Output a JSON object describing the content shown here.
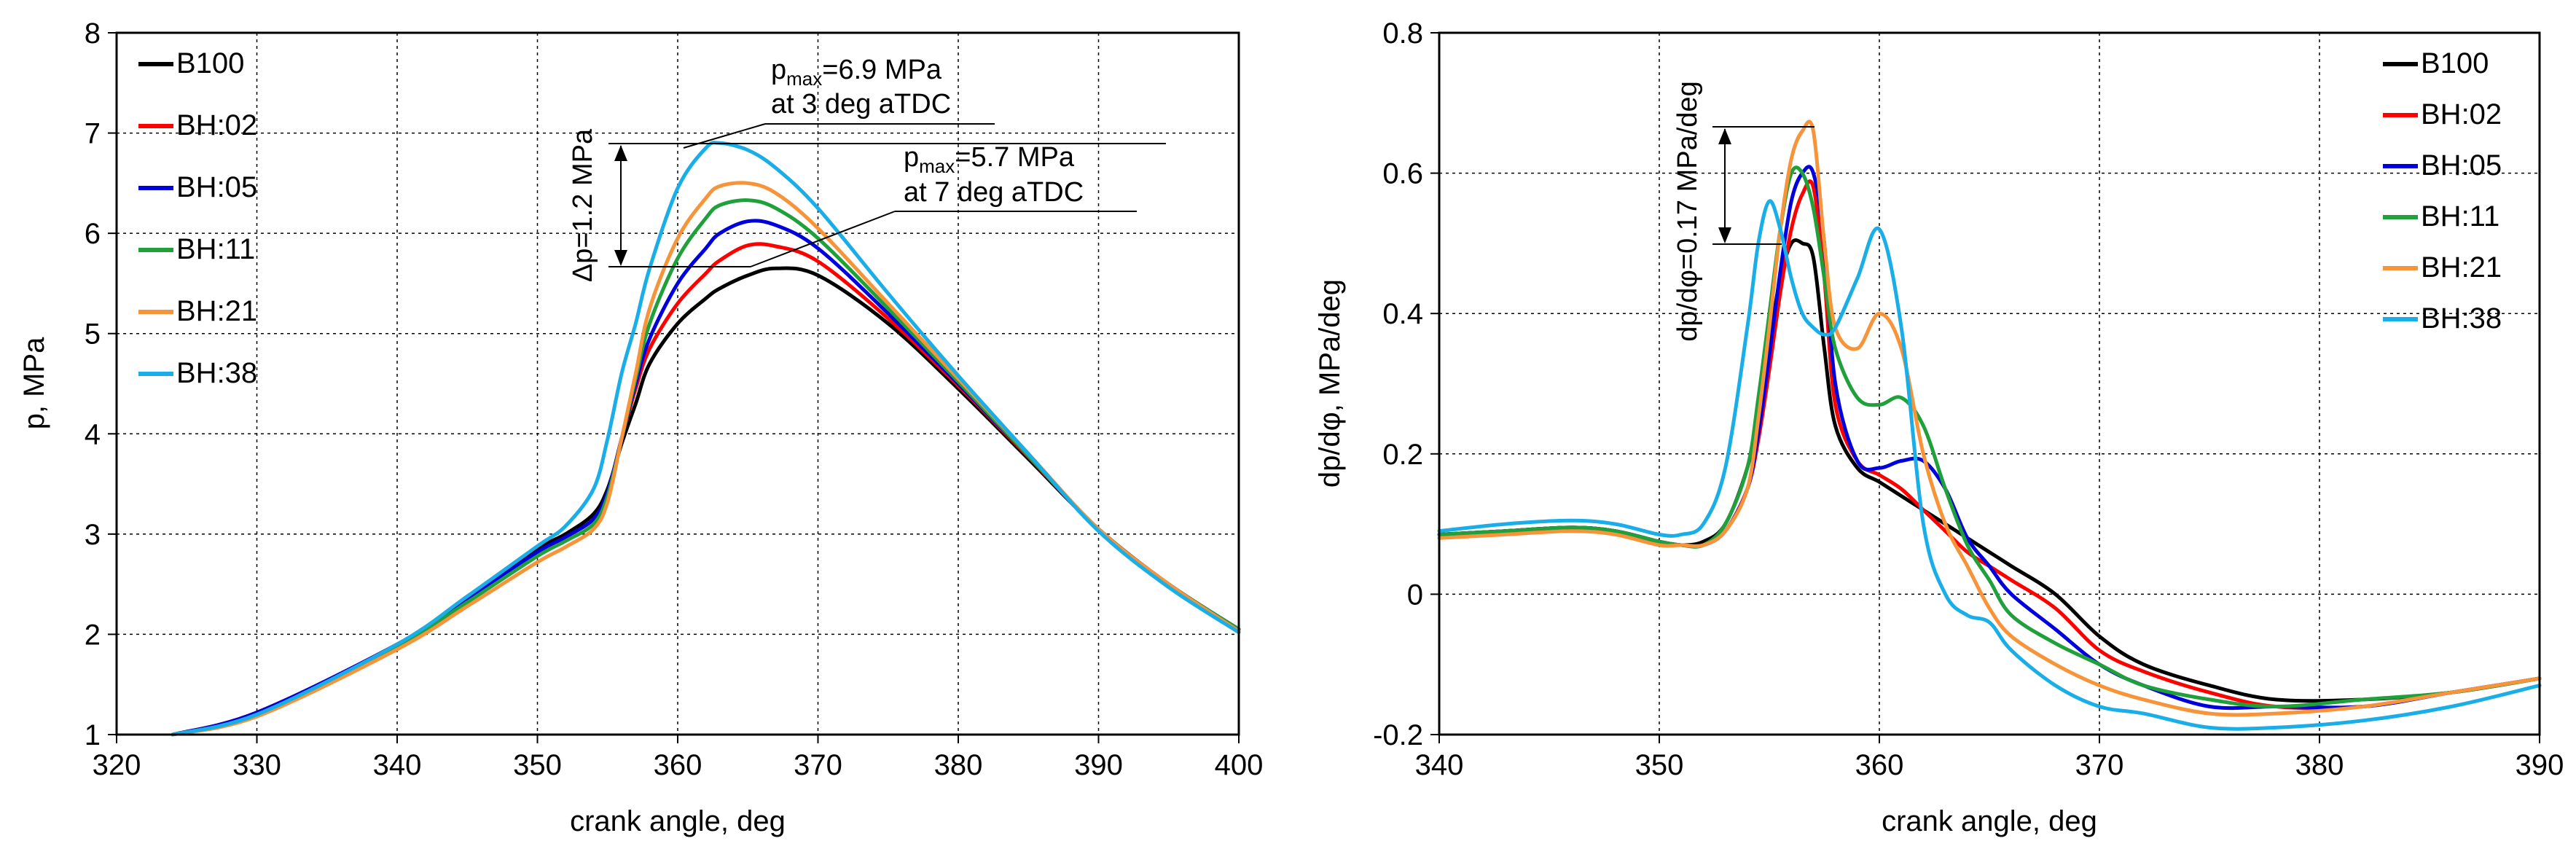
{
  "colors": {
    "B100": "#000000",
    "BH:02": "#ff0000",
    "BH:05": "#0000dd",
    "BH:11": "#1fa03a",
    "BH:21": "#f7943a",
    "BH:38": "#1aaee8"
  },
  "chart_data": [
    {
      "type": "line",
      "title": "",
      "xlabel": "crank angle, deg",
      "ylabel": "p, MPa",
      "xlim": [
        320,
        400
      ],
      "ylim": [
        1,
        8
      ],
      "xticks": [
        "320",
        "330",
        "340",
        "350",
        "360",
        "370",
        "380",
        "390",
        "400"
      ],
      "yticks": [
        "1",
        "2",
        "3",
        "4",
        "5",
        "6",
        "7",
        "8"
      ],
      "grid": true,
      "legend": "top-left",
      "x": [
        324,
        330,
        340,
        345,
        350,
        352,
        354,
        355,
        356,
        357,
        358,
        360,
        362,
        363,
        365,
        367,
        370,
        375,
        380,
        385,
        390,
        395,
        400
      ],
      "series": [
        {
          "name": "B100",
          "values": [
            1.0,
            1.22,
            1.9,
            2.37,
            2.85,
            3.0,
            3.2,
            3.45,
            3.9,
            4.3,
            4.7,
            5.1,
            5.35,
            5.45,
            5.58,
            5.65,
            5.58,
            5.1,
            4.45,
            3.75,
            3.05,
            2.5,
            2.05
          ]
        },
        {
          "name": "BH:02",
          "values": [
            1.0,
            1.22,
            1.9,
            2.35,
            2.82,
            2.97,
            3.15,
            3.42,
            3.95,
            4.45,
            4.85,
            5.3,
            5.6,
            5.73,
            5.88,
            5.87,
            5.72,
            5.15,
            4.48,
            3.77,
            3.05,
            2.5,
            2.05
          ]
        },
        {
          "name": "BH:05",
          "values": [
            1.0,
            1.22,
            1.9,
            2.35,
            2.82,
            2.97,
            3.15,
            3.42,
            3.95,
            4.5,
            4.95,
            5.5,
            5.85,
            6.0,
            6.12,
            6.08,
            5.85,
            5.2,
            4.5,
            3.78,
            3.05,
            2.5,
            2.05
          ]
        },
        {
          "name": "BH:11",
          "values": [
            1.0,
            1.2,
            1.88,
            2.32,
            2.78,
            2.93,
            3.1,
            3.38,
            3.95,
            4.55,
            5.1,
            5.75,
            6.15,
            6.28,
            6.33,
            6.25,
            5.95,
            5.25,
            4.52,
            3.78,
            3.05,
            2.5,
            2.05
          ]
        },
        {
          "name": "BH:21",
          "values": [
            1.0,
            1.18,
            1.85,
            2.28,
            2.72,
            2.87,
            3.05,
            3.32,
            3.95,
            4.6,
            5.25,
            5.95,
            6.35,
            6.47,
            6.5,
            6.4,
            6.05,
            5.3,
            4.55,
            3.8,
            3.05,
            2.5,
            2.03
          ]
        },
        {
          "name": "BH:38",
          "values": [
            1.0,
            1.2,
            1.9,
            2.38,
            2.88,
            3.08,
            3.45,
            3.95,
            4.6,
            5.1,
            5.65,
            6.45,
            6.85,
            6.9,
            6.83,
            6.65,
            6.25,
            5.4,
            4.58,
            3.8,
            3.03,
            2.47,
            2.02
          ]
        }
      ],
      "annotations": {
        "dp": "Δp=1.2 MPa",
        "pmax_hi_var": "p",
        "pmax_hi_sub": "max",
        "pmax_hi_val": "=6.9 MPa",
        "pmax_hi_line2": "at 3 deg aTDC",
        "pmax_lo_var": "p",
        "pmax_lo_sub": "max",
        "pmax_lo_val": "=5.7 MPa",
        "pmax_lo_line2": "at 7 deg aTDC"
      }
    },
    {
      "type": "line",
      "title": "",
      "xlabel": "crank angle, deg",
      "ylabel": "dp/dφ, MPa/deg",
      "xlim": [
        340,
        390
      ],
      "ylim": [
        -0.2,
        0.8
      ],
      "xticks": [
        "340",
        "350",
        "360",
        "370",
        "380",
        "390"
      ],
      "yticks": [
        "-0.2",
        "0",
        "0.2",
        "0.4",
        "0.6",
        "0.8"
      ],
      "grid": true,
      "legend": "top-right",
      "x": [
        340,
        343,
        346,
        348,
        350,
        351,
        352,
        353,
        354,
        354.5,
        355,
        355.5,
        356,
        356.5,
        357,
        357.5,
        358,
        359,
        360,
        361,
        362,
        363,
        364,
        365,
        366,
        368,
        370,
        372,
        375,
        378,
        382,
        386,
        390
      ],
      "series": [
        {
          "name": "B100",
          "values": [
            0.085,
            0.09,
            0.095,
            0.09,
            0.075,
            0.07,
            0.075,
            0.1,
            0.18,
            0.26,
            0.36,
            0.45,
            0.5,
            0.5,
            0.48,
            0.35,
            0.24,
            0.18,
            0.16,
            0.14,
            0.12,
            0.1,
            0.08,
            0.06,
            0.04,
            0.0,
            -0.06,
            -0.1,
            -0.13,
            -0.15,
            -0.15,
            -0.14,
            -0.12
          ]
        },
        {
          "name": "BH:02",
          "values": [
            0.085,
            0.09,
            0.095,
            0.09,
            0.075,
            0.07,
            0.07,
            0.09,
            0.15,
            0.22,
            0.32,
            0.43,
            0.52,
            0.57,
            0.58,
            0.45,
            0.27,
            0.19,
            0.17,
            0.15,
            0.12,
            0.09,
            0.06,
            0.04,
            0.02,
            -0.02,
            -0.08,
            -0.11,
            -0.14,
            -0.16,
            -0.16,
            -0.14,
            -0.12
          ]
        },
        {
          "name": "BH:05",
          "values": [
            0.085,
            0.09,
            0.095,
            0.09,
            0.075,
            0.07,
            0.07,
            0.09,
            0.15,
            0.23,
            0.34,
            0.46,
            0.56,
            0.6,
            0.6,
            0.5,
            0.3,
            0.19,
            0.18,
            0.19,
            0.19,
            0.15,
            0.08,
            0.04,
            0.0,
            -0.05,
            -0.1,
            -0.13,
            -0.16,
            -0.16,
            -0.16,
            -0.14,
            -0.12
          ]
        },
        {
          "name": "BH:11",
          "values": [
            0.085,
            0.09,
            0.095,
            0.09,
            0.075,
            0.07,
            0.07,
            0.1,
            0.18,
            0.28,
            0.4,
            0.52,
            0.6,
            0.6,
            0.55,
            0.45,
            0.35,
            0.28,
            0.27,
            0.28,
            0.24,
            0.15,
            0.07,
            0.02,
            -0.03,
            -0.07,
            -0.1,
            -0.13,
            -0.15,
            -0.16,
            -0.15,
            -0.14,
            -0.12
          ]
        },
        {
          "name": "BH:21",
          "values": [
            0.08,
            0.085,
            0.09,
            0.085,
            0.07,
            0.07,
            0.07,
            0.09,
            0.15,
            0.25,
            0.38,
            0.52,
            0.62,
            0.66,
            0.66,
            0.5,
            0.38,
            0.35,
            0.4,
            0.35,
            0.2,
            0.1,
            0.04,
            -0.02,
            -0.06,
            -0.1,
            -0.13,
            -0.15,
            -0.17,
            -0.17,
            -0.16,
            -0.14,
            -0.12
          ]
        },
        {
          "name": "BH:38",
          "values": [
            0.09,
            0.1,
            0.105,
            0.1,
            0.085,
            0.085,
            0.1,
            0.18,
            0.38,
            0.5,
            0.56,
            0.52,
            0.45,
            0.4,
            0.38,
            0.37,
            0.38,
            0.45,
            0.52,
            0.38,
            0.1,
            0.0,
            -0.03,
            -0.04,
            -0.08,
            -0.13,
            -0.16,
            -0.17,
            -0.19,
            -0.19,
            -0.18,
            -0.16,
            -0.13
          ]
        }
      ],
      "annotations": {
        "ddp": "dp/dφ=0.17 MPa/deg"
      }
    }
  ]
}
